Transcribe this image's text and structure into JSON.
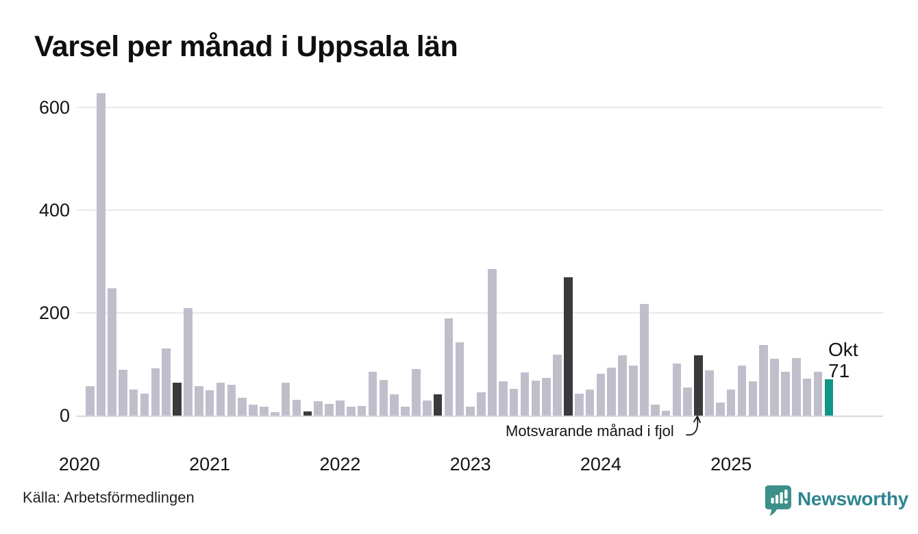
{
  "title": "Varsel per månad i Uppsala län",
  "source": "Källa: Arbetsförmedlingen",
  "branding": {
    "name": "Newsworthy"
  },
  "annotation": {
    "text": "Motsvarande månad i fjol",
    "target": "okt 2024"
  },
  "current_label": {
    "month": "Okt",
    "value": "71",
    "target": "okt 2025"
  },
  "colors": {
    "bar_default": "#c1becc",
    "bar_last_year_month": "#3a393c",
    "bar_current": "#109687",
    "grid": "#e8e8ed",
    "baseline": "#d8d8dd",
    "text": "#111111",
    "brand_icon": "#3c9089",
    "brand_text": "#2f8591"
  },
  "chart_data": {
    "type": "bar",
    "title": "Varsel per månad i Uppsala län",
    "xlabel": "",
    "ylabel": "",
    "ylim": [
      0,
      650
    ],
    "yticks": [
      0,
      200,
      400,
      600
    ],
    "grid": "horizontal",
    "x_year_labels": [
      "2020",
      "2021",
      "2022",
      "2023",
      "2024",
      "2025"
    ],
    "month_order": [
      "jan",
      "feb",
      "mar",
      "apr",
      "maj",
      "jun",
      "jul",
      "aug",
      "sep",
      "okt",
      "nov",
      "dec"
    ],
    "series": [
      {
        "year": "2020",
        "values": [
          0,
          58,
          628,
          248,
          89,
          51,
          43,
          92,
          131,
          64,
          210,
          57
        ]
      },
      {
        "year": "2021",
        "values": [
          49,
          64,
          60,
          35,
          22,
          17,
          7,
          64,
          31,
          8,
          28,
          23
        ]
      },
      {
        "year": "2022",
        "values": [
          30,
          17,
          19,
          85,
          70,
          42,
          17,
          91,
          30,
          42,
          190,
          143
        ]
      },
      {
        "year": "2023",
        "values": [
          18,
          45,
          286,
          67,
          52,
          84,
          68,
          74,
          119,
          270,
          43,
          51
        ]
      },
      {
        "year": "2024",
        "values": [
          82,
          94,
          118,
          97,
          218,
          21,
          10,
          102,
          55,
          118,
          88,
          25
        ]
      },
      {
        "year": "2025",
        "values": [
          51,
          97,
          67,
          138,
          111,
          86,
          112,
          72,
          86,
          71
        ]
      }
    ],
    "highlights": {
      "dark_bars": "oktober 2020, 2021, 2022, 2023, 2024 (motsvarande månad i fjol)",
      "teal_bar": "oktober 2025 (senaste månad, värde 71)"
    }
  }
}
